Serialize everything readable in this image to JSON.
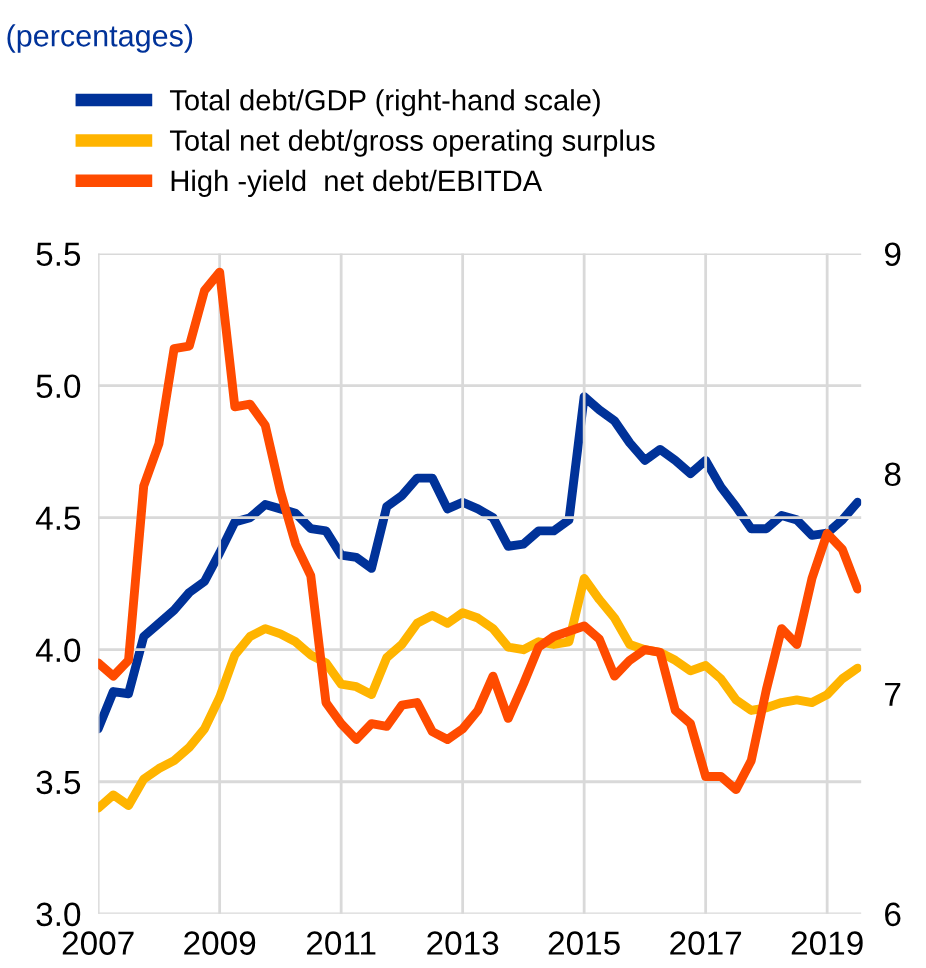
{
  "chart_data": {
    "type": "line",
    "title": "(percentages)",
    "x": [
      2007.0,
      2007.25,
      2007.5,
      2007.75,
      2008.0,
      2008.25,
      2008.5,
      2008.75,
      2009.0,
      2009.25,
      2009.5,
      2009.75,
      2010.0,
      2010.25,
      2010.5,
      2010.75,
      2011.0,
      2011.25,
      2011.5,
      2011.75,
      2012.0,
      2012.25,
      2012.5,
      2012.75,
      2013.0,
      2013.25,
      2013.5,
      2013.75,
      2014.0,
      2014.25,
      2014.5,
      2014.75,
      2015.0,
      2015.25,
      2015.5,
      2015.75,
      2016.0,
      2016.25,
      2016.5,
      2016.75,
      2017.0,
      2017.25,
      2017.5,
      2017.75,
      2018.0,
      2018.25,
      2018.5,
      2018.75,
      2019.0,
      2019.25,
      2019.5
    ],
    "series": [
      {
        "name": "Total debt/GDP (right-hand scale)",
        "color": "#003299",
        "axis": "y2",
        "values": [
          6.84,
          7.01,
          7.0,
          7.26,
          7.32,
          7.38,
          7.46,
          7.51,
          7.64,
          7.78,
          7.8,
          7.86,
          7.84,
          7.82,
          7.75,
          7.74,
          7.63,
          7.62,
          7.57,
          7.85,
          7.9,
          7.98,
          7.98,
          7.84,
          7.87,
          7.84,
          7.8,
          7.67,
          7.68,
          7.74,
          7.74,
          7.79,
          8.35,
          8.29,
          8.24,
          8.14,
          8.06,
          8.11,
          8.06,
          8.0,
          8.06,
          7.94,
          7.85,
          7.75,
          7.75,
          7.81,
          7.79,
          7.72,
          7.73,
          7.79,
          7.87
        ]
      },
      {
        "name": "Total net debt/gross operating surplus",
        "color": "#ffb400",
        "values": [
          3.4,
          3.45,
          3.41,
          3.51,
          3.55,
          3.58,
          3.63,
          3.7,
          3.82,
          3.98,
          4.05,
          4.08,
          4.06,
          4.03,
          3.98,
          3.95,
          3.87,
          3.86,
          3.83,
          3.97,
          4.02,
          4.1,
          4.13,
          4.1,
          4.14,
          4.12,
          4.08,
          4.01,
          4.0,
          4.03,
          4.02,
          4.03,
          4.27,
          4.19,
          4.12,
          4.02,
          4.0,
          3.99,
          3.96,
          3.92,
          3.94,
          3.89,
          3.81,
          3.77,
          3.78,
          3.8,
          3.81,
          3.8,
          3.83,
          3.89,
          3.93
        ]
      },
      {
        "name": "High -yield  net debt/EBITDA",
        "color": "#ff4b00",
        "values": [
          3.95,
          3.9,
          3.96,
          4.62,
          4.78,
          5.14,
          5.15,
          5.36,
          5.43,
          4.92,
          4.93,
          4.85,
          4.6,
          4.4,
          4.28,
          3.8,
          3.72,
          3.66,
          3.72,
          3.71,
          3.79,
          3.8,
          3.69,
          3.66,
          3.7,
          3.77,
          3.9,
          3.74,
          3.87,
          4.01,
          4.05,
          4.07,
          4.09,
          4.04,
          3.9,
          3.96,
          4.0,
          3.99,
          3.77,
          3.72,
          3.52,
          3.52,
          3.47,
          3.58,
          3.85,
          4.08,
          4.02,
          4.27,
          4.44,
          4.38,
          4.23
        ]
      }
    ],
    "xlim": [
      2007,
      2019.56
    ],
    "xticks": [
      2007,
      2009,
      2011,
      2013,
      2015,
      2017,
      2019
    ],
    "ylim": [
      3.0,
      5.5
    ],
    "yticks": [
      {
        "value": 3,
        "label": "3.0"
      },
      3.5,
      {
        "value": 4,
        "label": "4.0"
      },
      4.5,
      {
        "value": 5,
        "label": "5.0"
      },
      5.5
    ],
    "y2lim": [
      6,
      9
    ],
    "y2ticks": [
      6,
      7,
      8,
      9
    ],
    "grid": true,
    "legend": "top left",
    "marker": "none",
    "line_style": "solid"
  }
}
